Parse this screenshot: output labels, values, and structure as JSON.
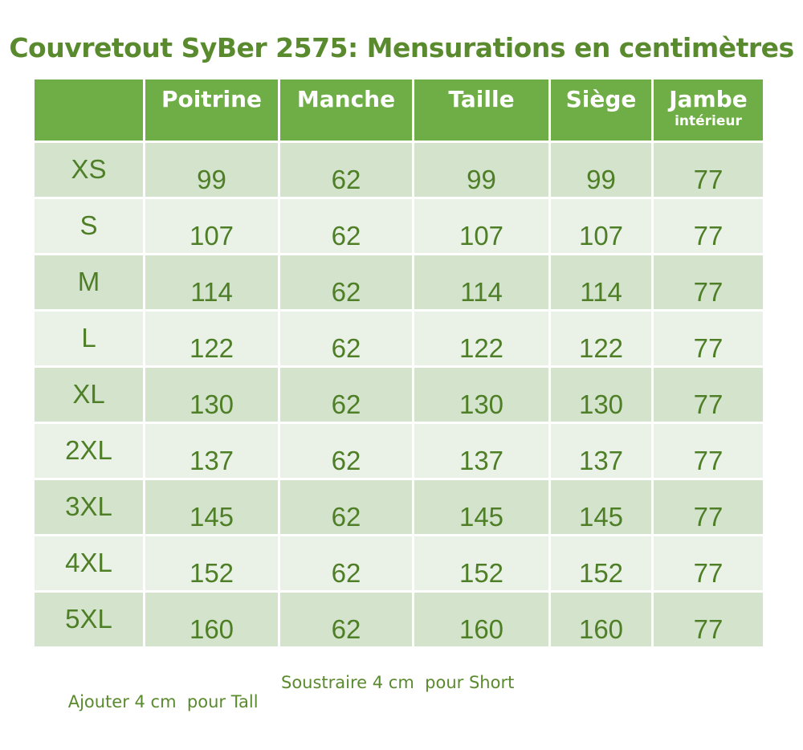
{
  "title": "Couvretout SyBer 2575: Mensurations en centimètres",
  "headers": [
    {
      "label": "",
      "sub": ""
    },
    {
      "label": "Poitrine",
      "sub": ""
    },
    {
      "label": "Manche",
      "sub": ""
    },
    {
      "label": "Taille",
      "sub": ""
    },
    {
      "label": "Siège",
      "sub": ""
    },
    {
      "label": "Jambe",
      "sub": "intérieur"
    }
  ],
  "rows": [
    {
      "size": "XS",
      "values": [
        "99",
        "62",
        "99",
        "99",
        "77"
      ]
    },
    {
      "size": "S",
      "values": [
        "107",
        "62",
        "107",
        "107",
        "77"
      ]
    },
    {
      "size": "M",
      "values": [
        "114",
        "62",
        "114",
        "114",
        "77"
      ]
    },
    {
      "size": "L",
      "values": [
        "122",
        "62",
        "122",
        "122",
        "77"
      ]
    },
    {
      "size": "XL",
      "values": [
        "130",
        "62",
        "130",
        "130",
        "77"
      ]
    },
    {
      "size": "2XL",
      "values": [
        "137",
        "62",
        "137",
        "137",
        "77"
      ]
    },
    {
      "size": "3XL",
      "values": [
        "145",
        "62",
        "145",
        "145",
        "77"
      ]
    },
    {
      "size": "4XL",
      "values": [
        "152",
        "62",
        "152",
        "152",
        "77"
      ]
    },
    {
      "size": "5XL",
      "values": [
        "160",
        "62",
        "160",
        "160",
        "77"
      ]
    }
  ],
  "footnote": {
    "tall": "Ajouter 4 cm  pour Tall",
    "short": "Soustraire 4 cm  pour Short"
  },
  "colors": {
    "header_bg": "#6fad47",
    "row_dark": "#d4e3cc",
    "row_light": "#eaf1e7",
    "text_green": "#4e7f27"
  }
}
